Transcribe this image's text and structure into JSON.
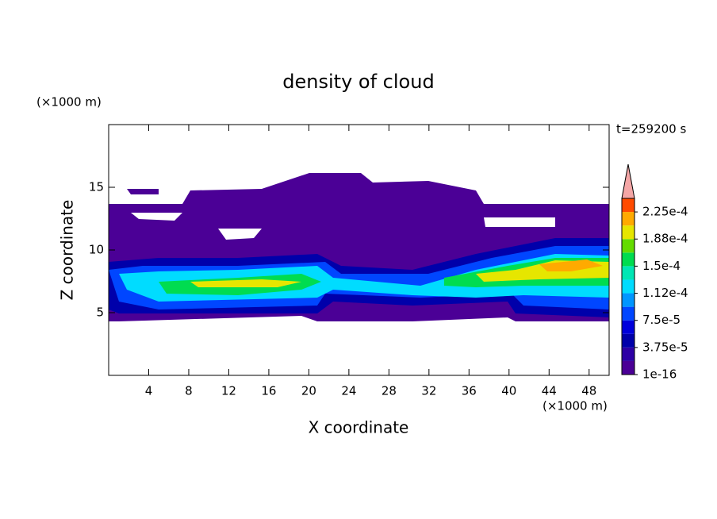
{
  "chart_data": {
    "type": "contour",
    "title": "density of cloud",
    "x_label": "X coordinate",
    "y_label": "Z coordinate",
    "x_unit": "(×1000 m)",
    "y_unit": "(×1000 m)",
    "time_label": "t=259200 s",
    "xlim": [
      0,
      50
    ],
    "ylim": [
      0,
      20
    ],
    "xticks": [
      4,
      8,
      12,
      16,
      20,
      24,
      28,
      32,
      36,
      40,
      44,
      48
    ],
    "yticks": [
      5,
      10,
      15
    ],
    "clim": [
      1e-16,
      0.00024375
    ],
    "colorbar_ticks": [
      {
        "value": 1e-16,
        "label": "1e-16"
      },
      {
        "value": 3.75e-05,
        "label": "3.75e-5"
      },
      {
        "value": 7.5e-05,
        "label": "7.5e-5"
      },
      {
        "value": 0.0001125,
        "label": "1.12e-4"
      },
      {
        "value": 0.00015,
        "label": "1.5e-4"
      },
      {
        "value": 0.0001875,
        "label": "1.88e-4"
      },
      {
        "value": 0.000225,
        "label": "2.25e-4"
      }
    ],
    "colors": [
      "#4b0096",
      "#2d00a5",
      "#0000aa",
      "#0000dc",
      "#0046ff",
      "#0096ff",
      "#00dcff",
      "#00e6b4",
      "#00dc50",
      "#64dc00",
      "#e6e600",
      "#ffaa00",
      "#ff4b00"
    ],
    "extend_color": "#f4a6a6"
  }
}
